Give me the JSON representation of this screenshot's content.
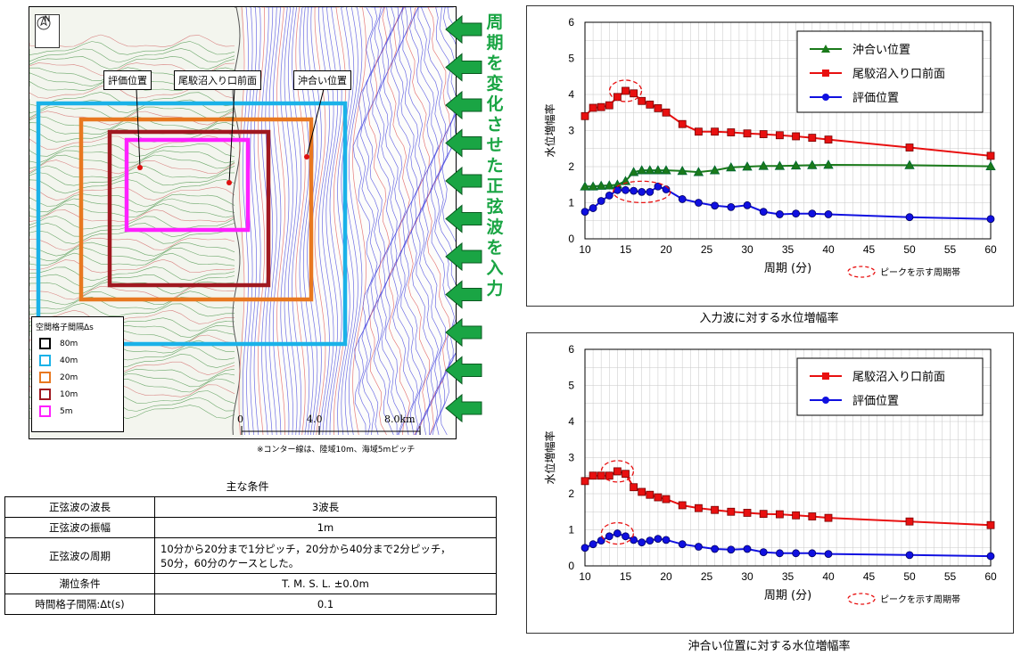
{
  "map": {
    "north_label": "N",
    "callouts": [
      "評価位置",
      "尾駮沼入り口前面",
      "沖合い位置"
    ],
    "legend": {
      "title": "空間格子間隔Δs",
      "items": [
        {
          "label": "80m",
          "color": "#000000"
        },
        {
          "label": "40m",
          "color": "#1ab2e8"
        },
        {
          "label": "20m",
          "color": "#e87820"
        },
        {
          "label": "10m",
          "color": "#a01820"
        },
        {
          "label": "5m",
          "color": "#ff20ff"
        }
      ]
    },
    "scale_labels": [
      "0",
      "4.0",
      "8.0km"
    ],
    "note": "※コンター線は、陸域10m、海域5mピッチ",
    "side_text": "周期を変化させた正弦波を入力",
    "arrow_color": "#1aa544"
  },
  "conditions": {
    "title": "主な条件",
    "rows": [
      {
        "key": "正弦波の波長",
        "value": "3波長"
      },
      {
        "key": "正弦波の振幅",
        "value": "1m"
      },
      {
        "key": "正弦波の周期",
        "value": "10分から20分まで1分ピッチ，20分から40分まで2分ピッチ，\n50分，60分のケースとした。"
      },
      {
        "key": "潮位条件",
        "value": "T. M. S. L. ±0.0m"
      },
      {
        "key": "時間格子間隔:Δt(s)",
        "value": "0.1"
      }
    ]
  },
  "chart_data": [
    {
      "type": "line",
      "title": "入力波に対する水位増幅率",
      "xlabel": "周期 (分)",
      "ylabel": "水位増幅率",
      "xlim": [
        10,
        60
      ],
      "ylim": [
        0,
        6
      ],
      "xticks": [
        10,
        15,
        20,
        25,
        30,
        35,
        40,
        45,
        50,
        55,
        60
      ],
      "yticks": [
        0,
        1,
        2,
        3,
        4,
        5,
        6
      ],
      "grid": true,
      "legend_position": "top-right",
      "peak_note": "ピークを示す周期帯",
      "x": [
        10,
        11,
        12,
        13,
        14,
        15,
        16,
        17,
        18,
        19,
        20,
        22,
        24,
        26,
        28,
        30,
        32,
        34,
        36,
        38,
        40,
        50,
        60
      ],
      "series": [
        {
          "name": "沖合い位置",
          "color": "#1a7a1a",
          "marker": "triangle",
          "values": [
            1.45,
            1.45,
            1.47,
            1.48,
            1.5,
            1.6,
            1.85,
            1.9,
            1.9,
            1.9,
            1.9,
            1.88,
            1.85,
            1.9,
            1.98,
            2.0,
            2.02,
            2.02,
            2.03,
            2.04,
            2.05,
            2.04,
            2.01
          ]
        },
        {
          "name": "尾駮沼入り口前面",
          "color": "#e81010",
          "marker": "square",
          "values": [
            3.4,
            3.63,
            3.65,
            3.7,
            3.93,
            4.1,
            4.03,
            3.82,
            3.72,
            3.62,
            3.5,
            3.18,
            2.97,
            2.97,
            2.95,
            2.92,
            2.9,
            2.87,
            2.84,
            2.8,
            2.75,
            2.53,
            2.3
          ]
        },
        {
          "name": "評価位置",
          "color": "#1010e0",
          "marker": "circle",
          "values": [
            0.75,
            0.85,
            1.05,
            1.2,
            1.35,
            1.35,
            1.33,
            1.3,
            1.3,
            1.45,
            1.37,
            1.1,
            1.0,
            0.92,
            0.88,
            0.93,
            0.75,
            0.68,
            0.7,
            0.7,
            0.68,
            0.6,
            0.55
          ]
        }
      ],
      "peak_bands": [
        {
          "series": 1,
          "x": 15
        },
        {
          "series": 2,
          "x": 17
        }
      ]
    },
    {
      "type": "line",
      "title": "沖合い位置に対する水位増幅率",
      "xlabel": "周期 (分)",
      "ylabel": "水位増幅率",
      "xlim": [
        10,
        60
      ],
      "ylim": [
        0,
        6
      ],
      "xticks": [
        10,
        15,
        20,
        25,
        30,
        35,
        40,
        45,
        50,
        55,
        60
      ],
      "yticks": [
        0,
        1,
        2,
        3,
        4,
        5,
        6
      ],
      "grid": true,
      "legend_position": "top-right",
      "peak_note": "ピークを示す周期帯",
      "x": [
        10,
        11,
        12,
        13,
        14,
        15,
        16,
        17,
        18,
        19,
        20,
        22,
        24,
        26,
        28,
        30,
        32,
        34,
        36,
        38,
        40,
        50,
        60
      ],
      "series": [
        {
          "name": "尾駮沼入り口前面",
          "color": "#e81010",
          "marker": "square",
          "values": [
            2.35,
            2.5,
            2.5,
            2.5,
            2.62,
            2.55,
            2.18,
            2.05,
            1.97,
            1.9,
            1.85,
            1.68,
            1.6,
            1.55,
            1.5,
            1.47,
            1.44,
            1.43,
            1.4,
            1.37,
            1.33,
            1.23,
            1.13
          ]
        },
        {
          "name": "評価位置",
          "color": "#1010e0",
          "marker": "circle",
          "values": [
            0.5,
            0.6,
            0.7,
            0.82,
            0.9,
            0.82,
            0.72,
            0.65,
            0.7,
            0.75,
            0.72,
            0.6,
            0.53,
            0.47,
            0.45,
            0.47,
            0.38,
            0.35,
            0.35,
            0.35,
            0.33,
            0.3,
            0.27
          ]
        }
      ],
      "peak_bands": [
        {
          "series": 0,
          "x": 14
        },
        {
          "series": 1,
          "x": 14
        }
      ]
    }
  ]
}
